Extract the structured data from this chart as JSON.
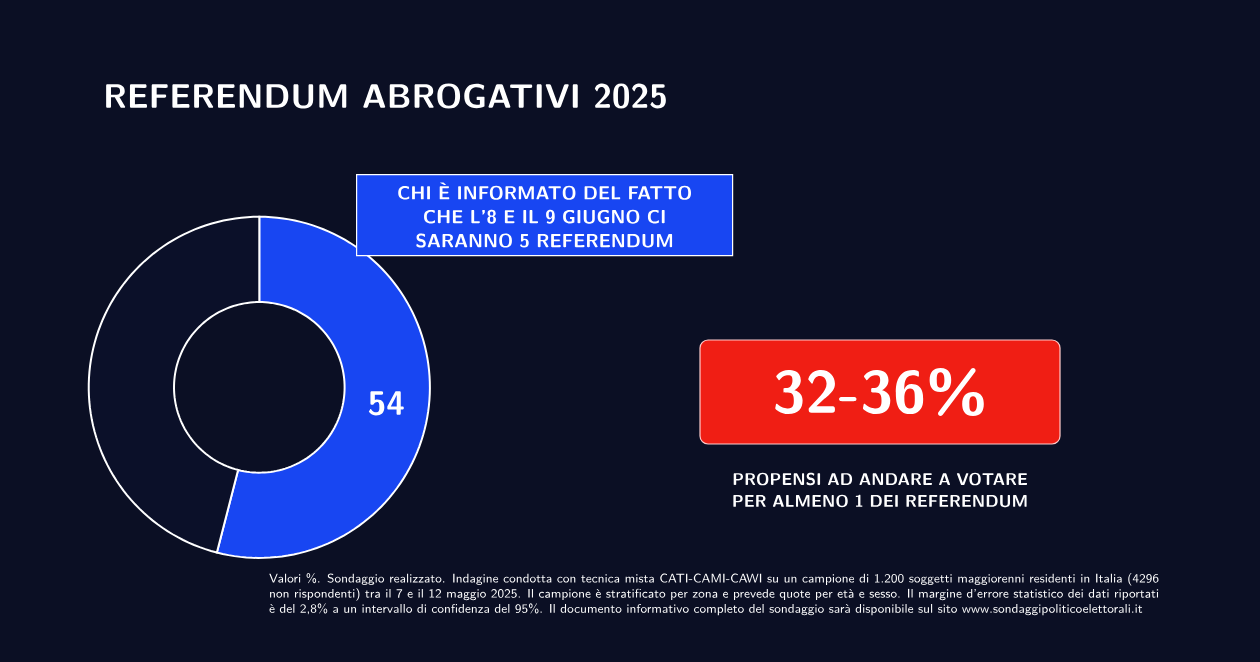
{
  "chart_data": {
    "type": "donut",
    "title": "REFERENDUM ABROGATIVI 2025",
    "categories": [
      "CHI È INFORMATO DEL FATTO CHE L’8 E IL 9 GIUGNO CI SARANNO 5 REFERENDUM",
      null
    ],
    "values": [
      54,
      46
    ],
    "colors": [
      "#1846f2",
      "#0b1029"
    ],
    "value_labels": [
      "54",
      null
    ],
    "annotations": [
      "32-36%",
      "PROPENSI AD ANDARE A VOTARE PER ALMENO 1 DEI REFERENDUM",
      "Valori %. Sondaggio realizzato. Indagine condotta con tecnica mista CATI-CAMI-CAWI su un campione di 1.200 soggetti maggiorenni residenti in Italia (4296 non rispondenti) tra il 7 e il 12 maggio 2025. Il campione è stratificato per zona e prevede quote per età e sesso. Il margine d’errore statistico dei dati riportati è del 2,8% a un intervallo di confidenza del 95%. Il documento informativo completo del sondaggio sarà disponibile sul sito www.sondaggipoliticoelettorali.it"
    ]
  }
}
